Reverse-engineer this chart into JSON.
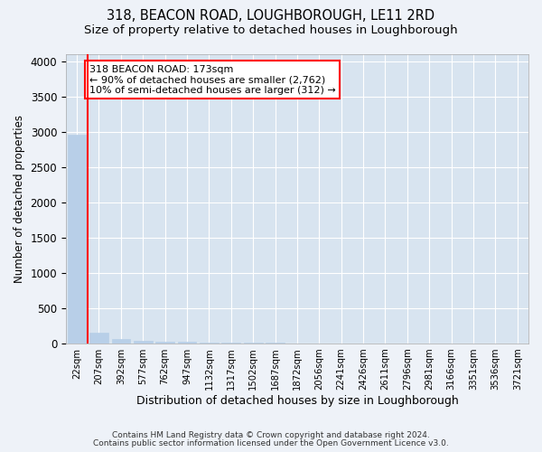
{
  "title": "318, BEACON ROAD, LOUGHBOROUGH, LE11 2RD",
  "subtitle": "Size of property relative to detached houses in Loughborough",
  "xlabel": "Distribution of detached houses by size in Loughborough",
  "ylabel": "Number of detached properties",
  "footnote1": "Contains HM Land Registry data © Crown copyright and database right 2024.",
  "footnote2": "Contains public sector information licensed under the Open Government Licence v3.0.",
  "categories": [
    "22sqm",
    "207sqm",
    "392sqm",
    "577sqm",
    "762sqm",
    "947sqm",
    "1132sqm",
    "1317sqm",
    "1502sqm",
    "1687sqm",
    "1872sqm",
    "2056sqm",
    "2241sqm",
    "2426sqm",
    "2611sqm",
    "2796sqm",
    "2981sqm",
    "3166sqm",
    "3351sqm",
    "3536sqm",
    "3721sqm"
  ],
  "bar_heights": [
    2960,
    150,
    60,
    35,
    25,
    18,
    12,
    9,
    7,
    5,
    4,
    3,
    2,
    2,
    2,
    1,
    1,
    1,
    1,
    1,
    1
  ],
  "bar_color": "#b8cfe8",
  "annotation_text": "318 BEACON ROAD: 173sqm\n← 90% of detached houses are smaller (2,762)\n10% of semi-detached houses are larger (312) →",
  "ylim": [
    0,
    4100
  ],
  "yticks": [
    0,
    500,
    1000,
    1500,
    2000,
    2500,
    3000,
    3500,
    4000
  ],
  "bg_color": "#eef2f8",
  "plot_bg_color": "#d8e4f0",
  "grid_color": "#ffffff",
  "title_fontsize": 10.5,
  "subtitle_fontsize": 9.5,
  "footnote_fontsize": 6.5
}
